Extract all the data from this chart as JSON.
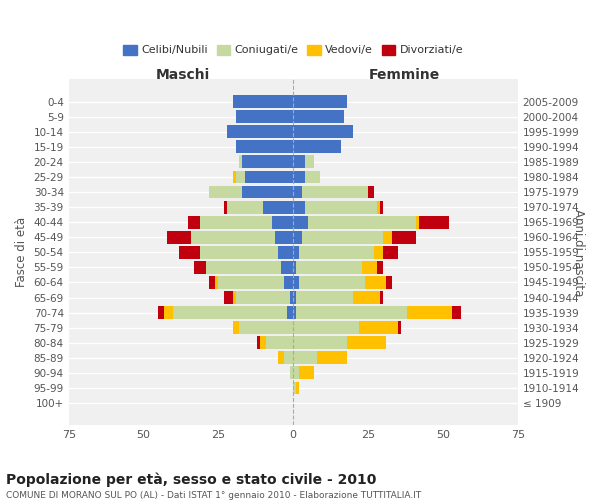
{
  "age_groups": [
    "100+",
    "95-99",
    "90-94",
    "85-89",
    "80-84",
    "75-79",
    "70-74",
    "65-69",
    "60-64",
    "55-59",
    "50-54",
    "45-49",
    "40-44",
    "35-39",
    "30-34",
    "25-29",
    "20-24",
    "15-19",
    "10-14",
    "5-9",
    "0-4"
  ],
  "birth_years": [
    "≤ 1909",
    "1910-1914",
    "1915-1919",
    "1920-1924",
    "1925-1929",
    "1930-1934",
    "1935-1939",
    "1940-1944",
    "1945-1949",
    "1950-1954",
    "1955-1959",
    "1960-1964",
    "1965-1969",
    "1970-1974",
    "1975-1979",
    "1980-1984",
    "1985-1989",
    "1990-1994",
    "1995-1999",
    "2000-2004",
    "2005-2009"
  ],
  "male": {
    "celibi": [
      0,
      0,
      0,
      0,
      0,
      0,
      2,
      1,
      3,
      4,
      5,
      6,
      7,
      10,
      17,
      16,
      17,
      19,
      22,
      19,
      20
    ],
    "coniugati": [
      0,
      0,
      1,
      3,
      9,
      18,
      38,
      18,
      22,
      25,
      26,
      28,
      24,
      12,
      11,
      3,
      1,
      0,
      0,
      0,
      0
    ],
    "vedovi": [
      0,
      0,
      0,
      2,
      2,
      2,
      3,
      1,
      1,
      0,
      0,
      0,
      0,
      0,
      0,
      1,
      0,
      0,
      0,
      0,
      0
    ],
    "divorziati": [
      0,
      0,
      0,
      0,
      1,
      0,
      2,
      3,
      2,
      4,
      7,
      8,
      4,
      1,
      0,
      0,
      0,
      0,
      0,
      0,
      0
    ]
  },
  "female": {
    "nubili": [
      0,
      0,
      0,
      0,
      0,
      0,
      1,
      1,
      2,
      1,
      2,
      3,
      5,
      4,
      3,
      4,
      4,
      16,
      20,
      17,
      18
    ],
    "coniugate": [
      0,
      1,
      2,
      8,
      18,
      22,
      37,
      19,
      22,
      22,
      25,
      27,
      36,
      24,
      22,
      5,
      3,
      0,
      0,
      0,
      0
    ],
    "vedove": [
      0,
      1,
      5,
      10,
      13,
      13,
      15,
      9,
      7,
      5,
      3,
      3,
      1,
      1,
      0,
      0,
      0,
      0,
      0,
      0,
      0
    ],
    "divorziate": [
      0,
      0,
      0,
      0,
      0,
      1,
      3,
      1,
      2,
      2,
      5,
      8,
      10,
      1,
      2,
      0,
      0,
      0,
      0,
      0,
      0
    ]
  },
  "colors": {
    "celibi": "#4472c4",
    "coniugati": "#c5d9a0",
    "vedovi": "#ffc000",
    "divorziati": "#c0000e"
  },
  "title": "Popolazione per età, sesso e stato civile - 2010",
  "subtitle": "COMUNE DI MORANO SUL PO (AL) - Dati ISTAT 1° gennaio 2010 - Elaborazione TUTTITALIA.IT",
  "xlabel_left": "Maschi",
  "xlabel_right": "Femmine",
  "ylabel_left": "Fasce di età",
  "ylabel_right": "Anni di nascita",
  "xlim": 75,
  "bg_color": "#ffffff",
  "plot_bg": "#f0f0f0",
  "legend_labels": [
    "Celibi/Nubili",
    "Coniugati/e",
    "Vedovi/e",
    "Divorziati/e"
  ]
}
